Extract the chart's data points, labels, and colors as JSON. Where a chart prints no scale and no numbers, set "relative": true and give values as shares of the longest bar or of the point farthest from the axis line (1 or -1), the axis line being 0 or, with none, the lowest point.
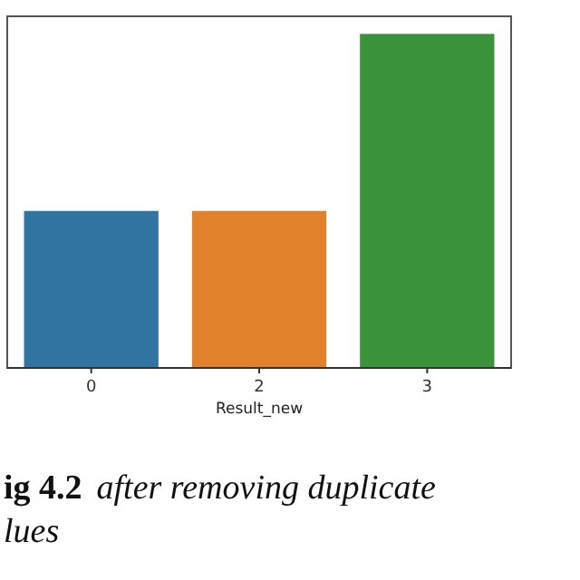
{
  "chart_data": {
    "type": "bar",
    "relative": true,
    "categories": [
      "0",
      "2",
      "3"
    ],
    "values": [
      0.47,
      0.47,
      1
    ],
    "colors": [
      "#3274a1",
      "#e1812c",
      "#3a923a"
    ],
    "xlabel": "Result_new",
    "annotations": [
      "ig 4.2  after removing duplicate",
      "lues"
    ]
  }
}
